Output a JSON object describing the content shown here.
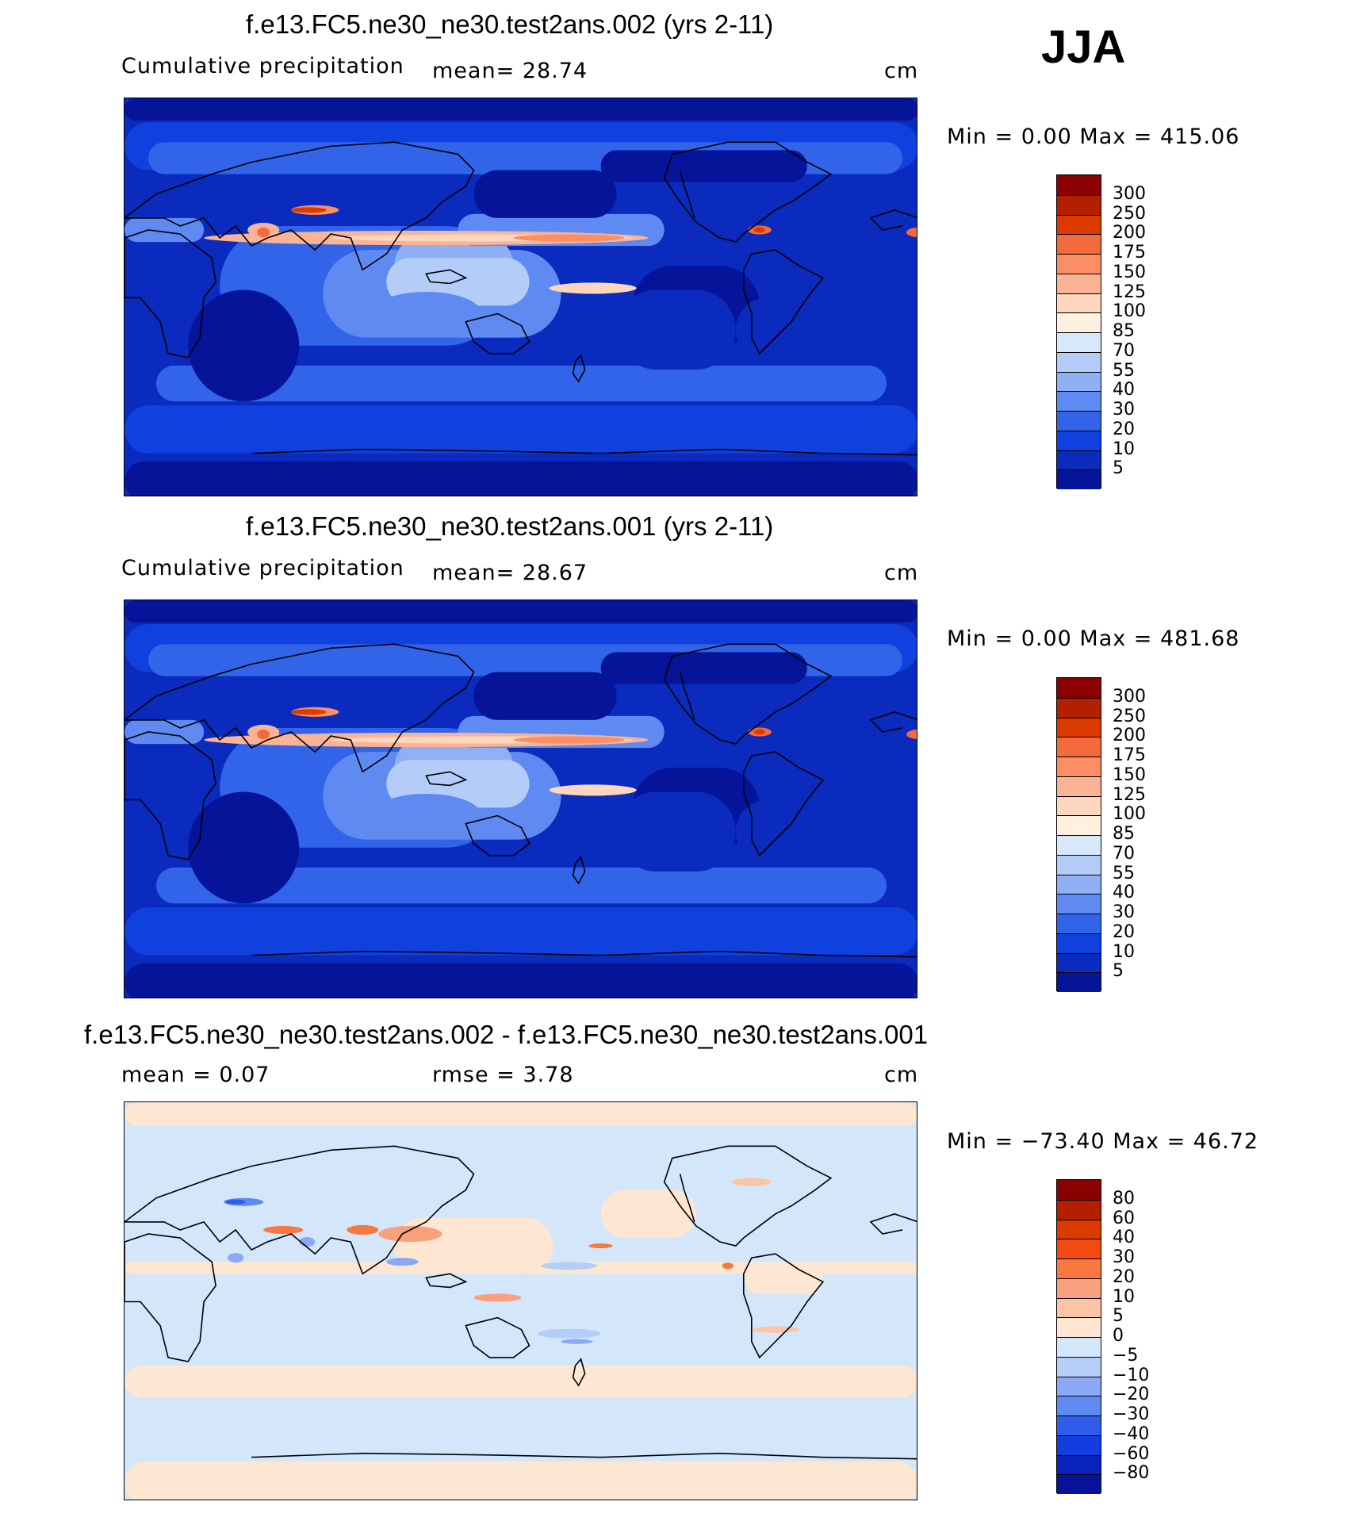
{
  "season": "JJA",
  "panels": [
    {
      "title": "f.e13.FC5.ne30_ne30.test2ans.002 (yrs 2-11)",
      "left_label": "Cumulative precipitation",
      "center_label": "mean=   28.74",
      "units": "cm",
      "minmax": "Min =    0.00 Max = 415.06",
      "colorbar": {
        "labels": [
          "300",
          "250",
          "200",
          "175",
          "150",
          "125",
          "100",
          "85",
          "70",
          "55",
          "40",
          "30",
          "20",
          "10",
          "5"
        ],
        "colors": [
          "#8b0000",
          "#b22000",
          "#dd3a00",
          "#f56a3d",
          "#fb8e63",
          "#fbb396",
          "#fdd6be",
          "#fff0e0",
          "#d8e8fb",
          "#b4cdf8",
          "#8fb0f5",
          "#5f8af1",
          "#3264ea",
          "#1040de",
          "#0a2bbd",
          "#06149a"
        ]
      },
      "map_style": "abs"
    },
    {
      "title": "f.e13.FC5.ne30_ne30.test2ans.001 (yrs 2-11)",
      "left_label": "Cumulative precipitation",
      "center_label": "mean=   28.67",
      "units": "cm",
      "minmax": "Min =    0.00 Max = 481.68",
      "colorbar": {
        "labels": [
          "300",
          "250",
          "200",
          "175",
          "150",
          "125",
          "100",
          "85",
          "70",
          "55",
          "40",
          "30",
          "20",
          "10",
          "5"
        ],
        "colors": [
          "#8b0000",
          "#b22000",
          "#dd3a00",
          "#f56a3d",
          "#fb8e63",
          "#fbb396",
          "#fdd6be",
          "#fff0e0",
          "#d8e8fb",
          "#b4cdf8",
          "#8fb0f5",
          "#5f8af1",
          "#3264ea",
          "#1040de",
          "#0a2bbd",
          "#06149a"
        ]
      },
      "map_style": "abs"
    },
    {
      "title": "f.e13.FC5.ne30_ne30.test2ans.002 - f.e13.FC5.ne30_ne30.test2ans.001",
      "left_label": "mean =    0.07",
      "center_label": "rmse =    3.78",
      "units": "cm",
      "minmax": "Min = −73.40 Max =   46.72",
      "colorbar": {
        "labels": [
          "80",
          "60",
          "40",
          "30",
          "20",
          "10",
          "5",
          "0",
          "−5",
          "−10",
          "−20",
          "−30",
          "−40",
          "−60",
          "−80"
        ],
        "colors": [
          "#8b0000",
          "#b22000",
          "#dd3a00",
          "#f34a12",
          "#f8783f",
          "#fba07c",
          "#fdc4a6",
          "#fde6d2",
          "#d4e6fa",
          "#b3cef8",
          "#8aa8f5",
          "#5f8af1",
          "#2f5de9",
          "#123ee0",
          "#0a24bb",
          "#06129a"
        ]
      },
      "map_style": "diff"
    }
  ]
}
